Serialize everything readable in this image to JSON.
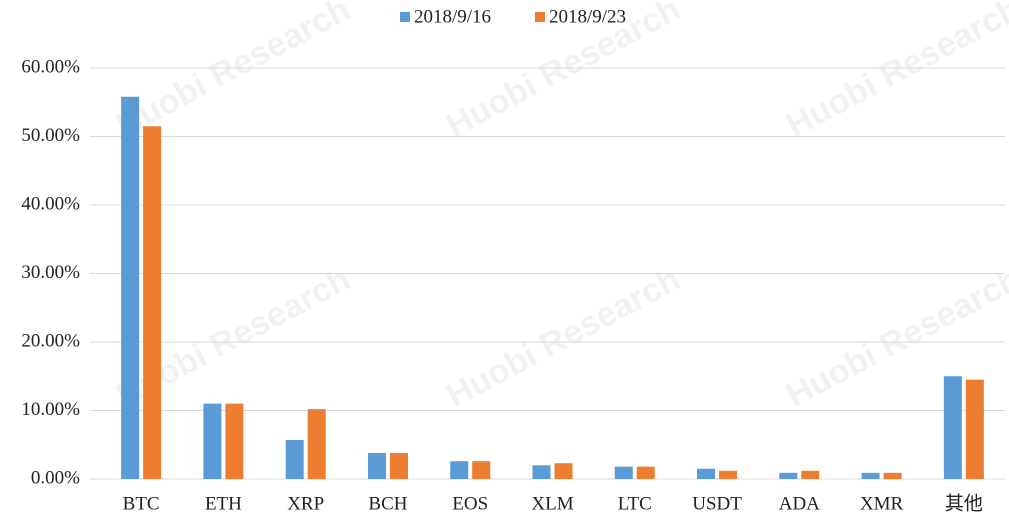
{
  "chart_data": {
    "type": "bar",
    "watermark": "Huobi Research",
    "categories": [
      "BTC",
      "ETH",
      "XRP",
      "BCH",
      "EOS",
      "XLM",
      "LTC",
      "USDT",
      "ADA",
      "XMR",
      "其他"
    ],
    "series": [
      {
        "name": "2018/9/16",
        "color": "#5b9bd5",
        "values": [
          55.8,
          11.0,
          5.7,
          3.8,
          2.6,
          2.0,
          1.8,
          1.5,
          0.9,
          0.9,
          15.0
        ]
      },
      {
        "name": "2018/9/23",
        "color": "#ed7d31",
        "values": [
          51.5,
          11.0,
          10.2,
          3.8,
          2.6,
          2.3,
          1.8,
          1.2,
          1.2,
          0.9,
          14.5
        ]
      }
    ],
    "ylim": [
      0,
      60
    ],
    "yticks": [
      {
        "value": 0,
        "label": "0.00%"
      },
      {
        "value": 10,
        "label": "10.00%"
      },
      {
        "value": 20,
        "label": "20.00%"
      },
      {
        "value": 30,
        "label": "30.00%"
      },
      {
        "value": 40,
        "label": "40.00%"
      },
      {
        "value": 50,
        "label": "50.00%"
      },
      {
        "value": 60,
        "label": "60.00%"
      }
    ],
    "grid": true,
    "legend": "top"
  }
}
